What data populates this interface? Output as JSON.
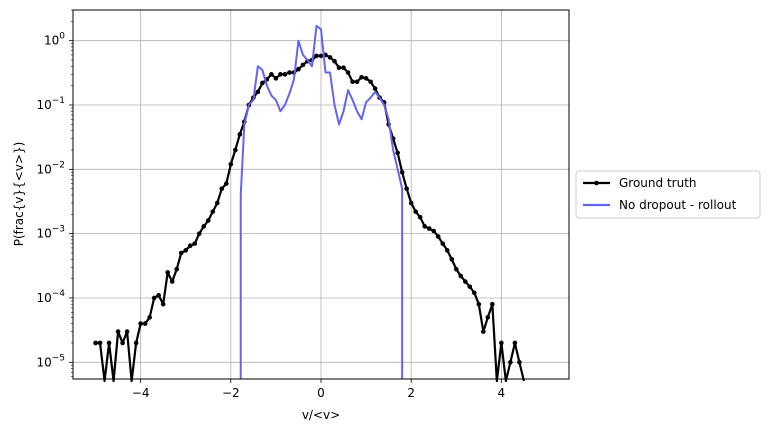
{
  "chart_data": {
    "type": "line",
    "title": "",
    "xlabel": "v/<v>",
    "ylabel": "P(frac{v}{<v>})",
    "xlim": [
      -5.5,
      5.5
    ],
    "ylim": [
      5.5e-06,
      3.0
    ],
    "y_scale": "log",
    "grid": true,
    "legend_position": "outside-right",
    "x_ticks": [
      -4,
      -2,
      0,
      2,
      4
    ],
    "x_tick_labels": [
      "−4",
      "−2",
      "0",
      "2",
      "4"
    ],
    "y_ticks": [
      1e-05,
      0.0001,
      0.001,
      0.01,
      0.1,
      1
    ],
    "y_tick_labels": [
      {
        "base": "10",
        "exp": "−5"
      },
      {
        "base": "10",
        "exp": "−4"
      },
      {
        "base": "10",
        "exp": "−3"
      },
      {
        "base": "10",
        "exp": "−2"
      },
      {
        "base": "10",
        "exp": "−1"
      },
      {
        "base": "10",
        "exp": "0"
      }
    ],
    "series": [
      {
        "name": "Ground truth",
        "color": "#000000",
        "markers": true,
        "x": [
          -5.0,
          -4.9,
          -4.8,
          -4.7,
          -4.6,
          -4.5,
          -4.4,
          -4.3,
          -4.2,
          -4.1,
          -4.0,
          -3.9,
          -3.8,
          -3.7,
          -3.6,
          -3.5,
          -3.4,
          -3.3,
          -3.2,
          -3.1,
          -3.0,
          -2.9,
          -2.8,
          -2.7,
          -2.6,
          -2.5,
          -2.4,
          -2.3,
          -2.2,
          -2.1,
          -2.0,
          -1.9,
          -1.8,
          -1.7,
          -1.6,
          -1.5,
          -1.4,
          -1.3,
          -1.2,
          -1.1,
          -1.0,
          -0.9,
          -0.8,
          -0.7,
          -0.6,
          -0.5,
          -0.4,
          -0.3,
          -0.2,
          -0.1,
          0.0,
          0.1,
          0.2,
          0.3,
          0.4,
          0.5,
          0.6,
          0.7,
          0.8,
          0.9,
          1.0,
          1.1,
          1.2,
          1.3,
          1.4,
          1.5,
          1.6,
          1.7,
          1.8,
          1.9,
          2.0,
          2.1,
          2.2,
          2.3,
          2.4,
          2.5,
          2.6,
          2.7,
          2.8,
          2.9,
          3.0,
          3.1,
          3.2,
          3.3,
          3.4,
          3.5,
          3.6,
          3.7,
          3.8,
          3.9,
          4.0,
          4.1,
          4.2,
          4.3,
          4.4,
          4.5
        ],
        "y": [
          2e-05,
          2e-05,
          0,
          2e-05,
          0,
          3e-05,
          2e-05,
          3e-05,
          0,
          2e-05,
          4e-05,
          4e-05,
          5e-05,
          0.0001,
          0.00011,
          8e-05,
          0.00025,
          0.00018,
          0.00028,
          0.0005,
          0.00055,
          0.00065,
          0.0007,
          0.001,
          0.0013,
          0.0016,
          0.0022,
          0.003,
          0.005,
          0.006,
          0.012,
          0.02,
          0.035,
          0.055,
          0.1,
          0.13,
          0.16,
          0.22,
          0.25,
          0.3,
          0.26,
          0.3,
          0.3,
          0.32,
          0.32,
          0.36,
          0.42,
          0.48,
          0.5,
          0.58,
          0.58,
          0.6,
          0.55,
          0.48,
          0.38,
          0.38,
          0.32,
          0.23,
          0.23,
          0.27,
          0.26,
          0.23,
          0.18,
          0.13,
          0.11,
          0.05,
          0.03,
          0.018,
          0.009,
          0.005,
          0.003,
          0.0022,
          0.0018,
          0.0013,
          0.0012,
          0.0011,
          0.0009,
          0.0007,
          0.00055,
          0.0004,
          0.00028,
          0.00022,
          0.00018,
          0.00015,
          0.00012,
          8e-05,
          3e-05,
          5e-05,
          8e-05,
          0,
          2e-05,
          0,
          1e-05,
          2e-05,
          1e-05,
          0
        ]
      },
      {
        "name": "No dropout - rollout",
        "color": "#6464ee",
        "markers": false,
        "x": [
          -1.78,
          -1.78,
          -1.7,
          -1.6,
          -1.5,
          -1.4,
          -1.3,
          -1.2,
          -1.1,
          -1.0,
          -0.9,
          -0.8,
          -0.7,
          -0.6,
          -0.5,
          -0.4,
          -0.3,
          -0.2,
          -0.1,
          0.0,
          0.1,
          0.2,
          0.3,
          0.4,
          0.5,
          0.6,
          0.7,
          0.8,
          0.9,
          1.0,
          1.1,
          1.2,
          1.3,
          1.4,
          1.5,
          1.6,
          1.7,
          1.8,
          1.8
        ],
        "y": [
          5.5e-06,
          0.004,
          0.05,
          0.1,
          0.12,
          0.4,
          0.35,
          0.2,
          0.14,
          0.12,
          0.08,
          0.1,
          0.15,
          0.25,
          1.0,
          0.6,
          0.5,
          0.4,
          1.7,
          1.5,
          0.32,
          0.32,
          0.1,
          0.05,
          0.08,
          0.17,
          0.12,
          0.08,
          0.06,
          0.11,
          0.13,
          0.16,
          0.13,
          0.1,
          0.06,
          0.02,
          0.01,
          0.005,
          5.5e-06
        ]
      }
    ]
  }
}
